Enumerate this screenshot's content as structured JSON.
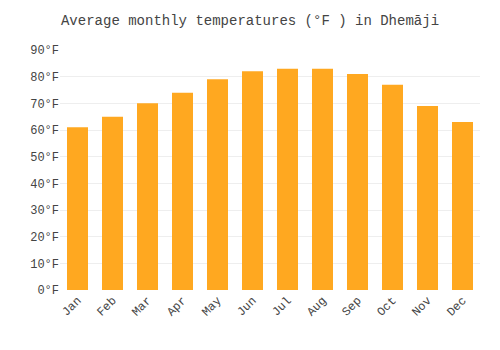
{
  "chart_data": {
    "type": "bar",
    "title": "Average monthly temperatures (°F ) in Dhemāji",
    "categories": [
      "Jan",
      "Feb",
      "Mar",
      "Apr",
      "May",
      "Jun",
      "Jul",
      "Aug",
      "Sep",
      "Oct",
      "Nov",
      "Dec"
    ],
    "values": [
      61,
      65,
      70,
      74,
      79,
      82,
      83,
      83,
      81,
      77,
      69,
      63
    ],
    "color": "#FFA820",
    "ylim": [
      0,
      90
    ],
    "yticks": [
      {
        "value": 0,
        "label": "0°F"
      },
      {
        "value": 10,
        "label": "10°F"
      },
      {
        "value": 20,
        "label": "20°F"
      },
      {
        "value": 30,
        "label": "30°F"
      },
      {
        "value": 40,
        "label": "40°F"
      },
      {
        "value": 50,
        "label": "50°F"
      },
      {
        "value": 60,
        "label": "60°F"
      },
      {
        "value": 70,
        "label": "70°F"
      },
      {
        "value": 80,
        "label": "80°F"
      },
      {
        "value": 90,
        "label": "90°F"
      }
    ],
    "grid": true
  }
}
